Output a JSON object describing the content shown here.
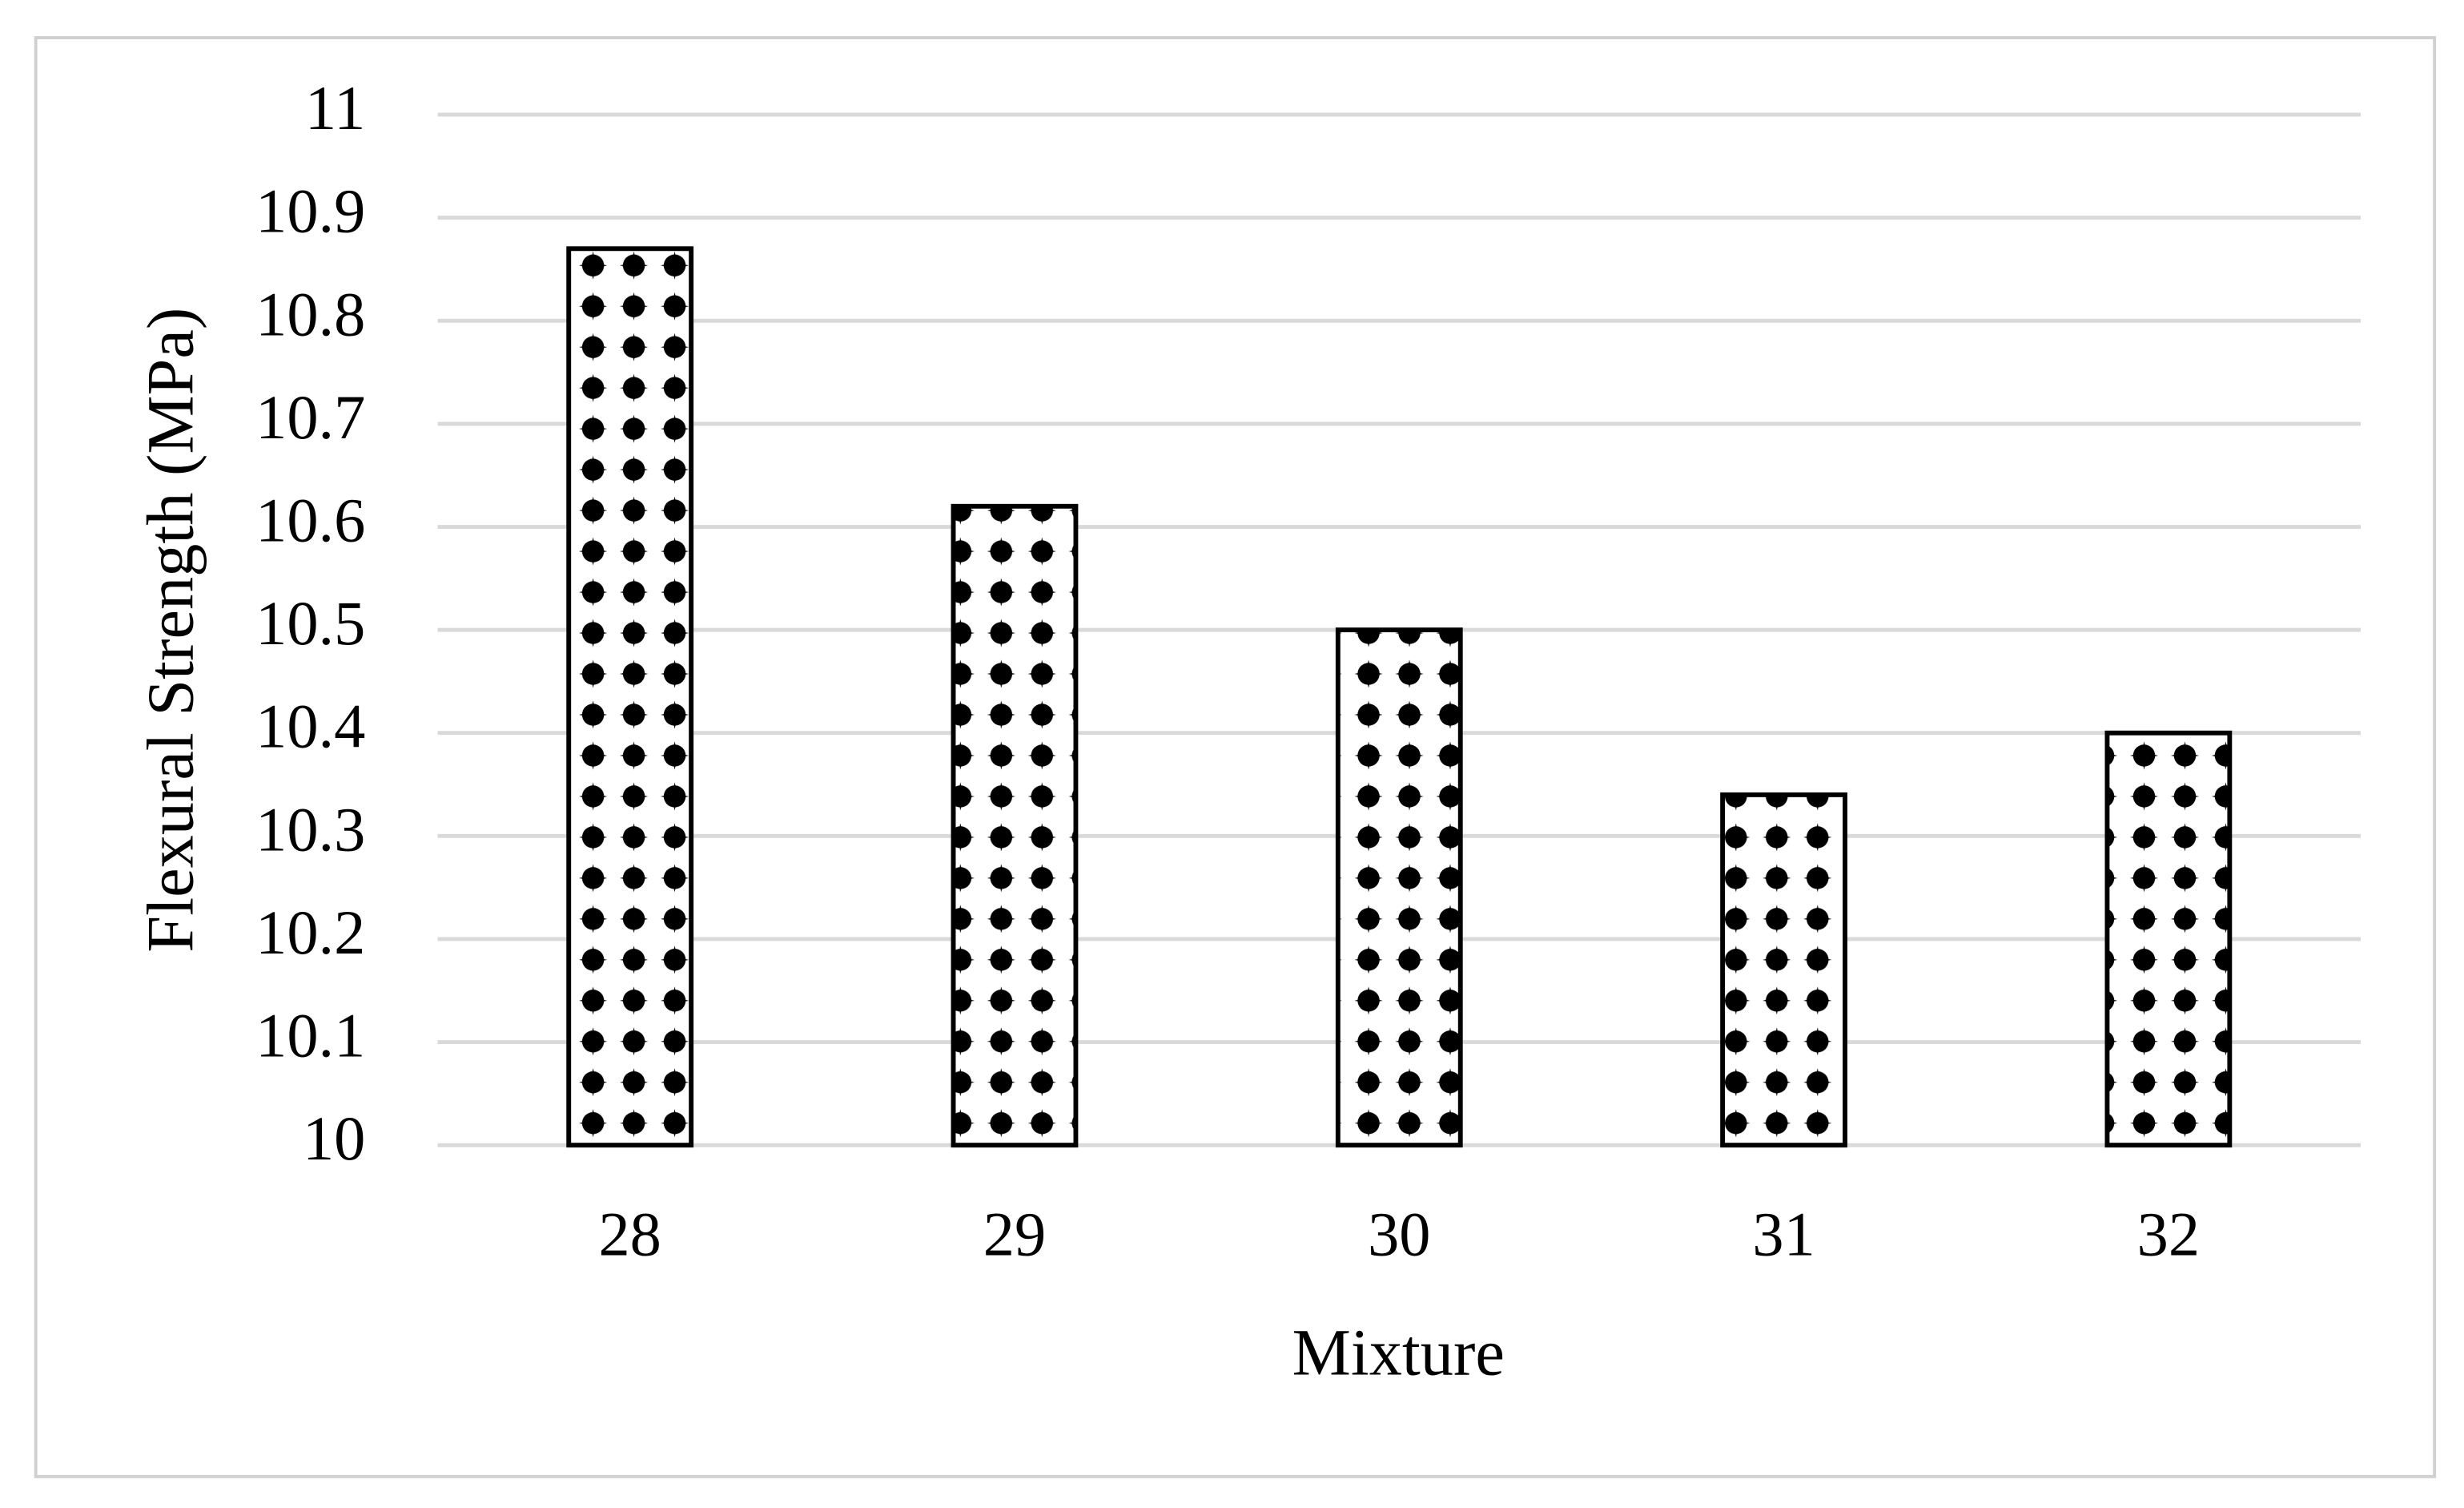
{
  "chart_data": {
    "type": "bar",
    "x_label": "Mixture",
    "y_label": "Flexural Strength (MPa)",
    "categories": [
      "28",
      "29",
      "30",
      "31",
      "32"
    ],
    "values": [
      10.87,
      10.62,
      10.5,
      10.34,
      10.4
    ],
    "color": "#000000",
    "ylim": [
      10,
      11
    ],
    "yticks": [
      10,
      10.1,
      10.2,
      10.3,
      10.4,
      10.5,
      10.6,
      10.7,
      10.8,
      10.9,
      11
    ],
    "grid": true
  }
}
